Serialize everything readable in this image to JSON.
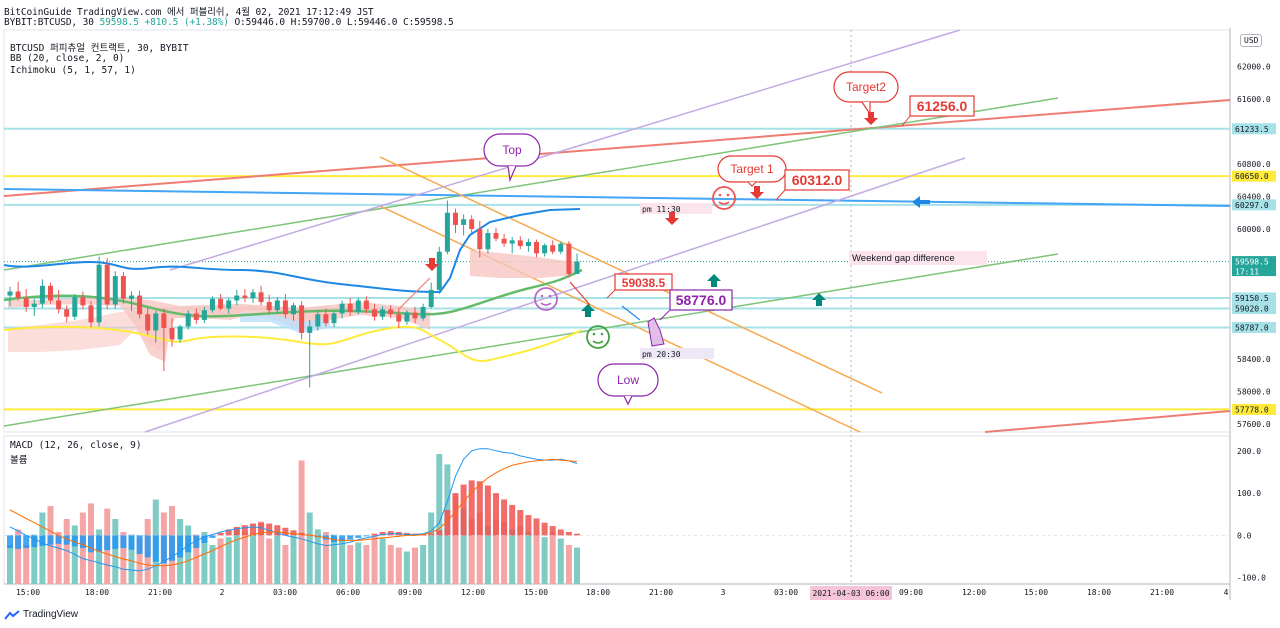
{
  "header": {
    "line1": "BitCoinGuide TradingView.com 에서 퍼블리쉬, 4월 02, 2021 17:12:49 JST",
    "symbol": "BYBIT:BTCUSD, 30",
    "price": "59598.5",
    "change": "+810.5 (+1.38%)",
    "ohlc": "O:59446.0 H:59700.0 L:59446.0 C:59598.5"
  },
  "legend": {
    "title": "BTCUSD 퍼피츄얼 컨트랙트, 30, BYBIT",
    "bb": "BB (20, close, 2, 0)",
    "ichimoku": "Ichimoku (5, 1, 57, 1)",
    "macd": "MACD (12, 26, close, 9)",
    "volume": "볼륨"
  },
  "currency": "USD",
  "brand": "TradingView",
  "chart_data": {
    "type": "candlestick",
    "x_labels": [
      "15:00",
      "18:00",
      "21:00",
      "2",
      "03:00",
      "06:00",
      "09:00",
      "12:00",
      "15:00",
      "18:00",
      "21:00",
      "3",
      "03:00",
      "06:00",
      "09:00",
      "12:00",
      "15:00",
      "18:00",
      "21:00",
      "4"
    ],
    "x_highlight": [
      "2021-04-03",
      "06:00"
    ],
    "y_ticks": [
      "62000.0",
      "61600.0",
      "60800.0",
      "60400.0",
      "60000.0",
      "58400.0",
      "58000.0",
      "57600.0"
    ],
    "y_range": [
      57500,
      62450
    ],
    "candles": [
      {
        "o": 59180,
        "h": 59290,
        "l": 59050,
        "c": 59230
      },
      {
        "o": 59230,
        "h": 59350,
        "l": 59120,
        "c": 59150
      },
      {
        "o": 59150,
        "h": 59260,
        "l": 58980,
        "c": 59040
      },
      {
        "o": 59040,
        "h": 59140,
        "l": 58930,
        "c": 59080
      },
      {
        "o": 59080,
        "h": 59380,
        "l": 59030,
        "c": 59300
      },
      {
        "o": 59300,
        "h": 59340,
        "l": 59080,
        "c": 59120
      },
      {
        "o": 59120,
        "h": 59250,
        "l": 58960,
        "c": 59010
      },
      {
        "o": 59010,
        "h": 59060,
        "l": 58850,
        "c": 58920
      },
      {
        "o": 58920,
        "h": 59200,
        "l": 58880,
        "c": 59160
      },
      {
        "o": 59160,
        "h": 59230,
        "l": 59010,
        "c": 59060
      },
      {
        "o": 59060,
        "h": 59110,
        "l": 58790,
        "c": 58850
      },
      {
        "o": 58850,
        "h": 59660,
        "l": 58800,
        "c": 59560
      },
      {
        "o": 59560,
        "h": 59640,
        "l": 59010,
        "c": 59070
      },
      {
        "o": 59070,
        "h": 59480,
        "l": 59020,
        "c": 59420
      },
      {
        "o": 59420,
        "h": 59470,
        "l": 59080,
        "c": 59140
      },
      {
        "o": 59140,
        "h": 59230,
        "l": 58990,
        "c": 59180
      },
      {
        "o": 59180,
        "h": 59240,
        "l": 58900,
        "c": 58950
      },
      {
        "o": 58950,
        "h": 59030,
        "l": 58700,
        "c": 58750
      },
      {
        "o": 58750,
        "h": 58990,
        "l": 58600,
        "c": 58960
      },
      {
        "o": 58960,
        "h": 59020,
        "l": 58250,
        "c": 58780
      },
      {
        "o": 58780,
        "h": 58900,
        "l": 58550,
        "c": 58640
      },
      {
        "o": 58640,
        "h": 58820,
        "l": 58600,
        "c": 58800
      },
      {
        "o": 58800,
        "h": 59000,
        "l": 58760,
        "c": 58960
      },
      {
        "o": 58960,
        "h": 59020,
        "l": 58830,
        "c": 58880
      },
      {
        "o": 58880,
        "h": 59040,
        "l": 58840,
        "c": 59000
      },
      {
        "o": 59000,
        "h": 59170,
        "l": 58970,
        "c": 59140
      },
      {
        "o": 59140,
        "h": 59200,
        "l": 59000,
        "c": 59020
      },
      {
        "o": 59020,
        "h": 59150,
        "l": 58960,
        "c": 59120
      },
      {
        "o": 59120,
        "h": 59250,
        "l": 59060,
        "c": 59180
      },
      {
        "o": 59180,
        "h": 59260,
        "l": 59100,
        "c": 59150
      },
      {
        "o": 59150,
        "h": 59260,
        "l": 59090,
        "c": 59220
      },
      {
        "o": 59220,
        "h": 59300,
        "l": 59060,
        "c": 59100
      },
      {
        "o": 59100,
        "h": 59190,
        "l": 58950,
        "c": 59000
      },
      {
        "o": 59000,
        "h": 59160,
        "l": 58960,
        "c": 59120
      },
      {
        "o": 59120,
        "h": 59200,
        "l": 58900,
        "c": 58950
      },
      {
        "o": 58950,
        "h": 59090,
        "l": 58870,
        "c": 59060
      },
      {
        "o": 59060,
        "h": 59110,
        "l": 58640,
        "c": 58720
      },
      {
        "o": 58720,
        "h": 58880,
        "l": 58050,
        "c": 58800
      },
      {
        "o": 58800,
        "h": 59000,
        "l": 58750,
        "c": 58950
      },
      {
        "o": 58950,
        "h": 59020,
        "l": 58800,
        "c": 58840
      },
      {
        "o": 58840,
        "h": 58990,
        "l": 58790,
        "c": 58960
      },
      {
        "o": 58960,
        "h": 59120,
        "l": 58900,
        "c": 59080
      },
      {
        "o": 59080,
        "h": 59150,
        "l": 58930,
        "c": 58980
      },
      {
        "o": 58980,
        "h": 59150,
        "l": 58950,
        "c": 59120
      },
      {
        "o": 59120,
        "h": 59170,
        "l": 58960,
        "c": 59010
      },
      {
        "o": 59010,
        "h": 59080,
        "l": 58870,
        "c": 58920
      },
      {
        "o": 58920,
        "h": 59050,
        "l": 58880,
        "c": 59010
      },
      {
        "o": 59010,
        "h": 59060,
        "l": 58900,
        "c": 58950
      },
      {
        "o": 58950,
        "h": 59030,
        "l": 58780,
        "c": 58860
      },
      {
        "o": 58860,
        "h": 59000,
        "l": 58820,
        "c": 58970
      },
      {
        "o": 58970,
        "h": 59040,
        "l": 58840,
        "c": 58900
      },
      {
        "o": 58900,
        "h": 59080,
        "l": 58870,
        "c": 59040
      },
      {
        "o": 59040,
        "h": 59340,
        "l": 59020,
        "c": 59250
      },
      {
        "o": 59250,
        "h": 59780,
        "l": 59200,
        "c": 59720
      },
      {
        "o": 59720,
        "h": 60350,
        "l": 59690,
        "c": 60200
      },
      {
        "o": 60200,
        "h": 60250,
        "l": 59950,
        "c": 60050
      },
      {
        "o": 60050,
        "h": 60180,
        "l": 59920,
        "c": 60120
      },
      {
        "o": 60120,
        "h": 60170,
        "l": 59950,
        "c": 60000
      },
      {
        "o": 60000,
        "h": 60100,
        "l": 59650,
        "c": 59750
      },
      {
        "o": 59750,
        "h": 60000,
        "l": 59700,
        "c": 59950
      },
      {
        "o": 59950,
        "h": 60010,
        "l": 59850,
        "c": 59880
      },
      {
        "o": 59880,
        "h": 59940,
        "l": 59780,
        "c": 59820
      },
      {
        "o": 59820,
        "h": 59900,
        "l": 59700,
        "c": 59860
      },
      {
        "o": 59860,
        "h": 59910,
        "l": 59750,
        "c": 59790
      },
      {
        "o": 59790,
        "h": 59880,
        "l": 59720,
        "c": 59840
      },
      {
        "o": 59840,
        "h": 59870,
        "l": 59650,
        "c": 59700
      },
      {
        "o": 59700,
        "h": 59820,
        "l": 59660,
        "c": 59800
      },
      {
        "o": 59800,
        "h": 59860,
        "l": 59690,
        "c": 59720
      },
      {
        "o": 59720,
        "h": 59840,
        "l": 59690,
        "c": 59820
      },
      {
        "o": 59820,
        "h": 59850,
        "l": 59400,
        "c": 59446
      },
      {
        "o": 59446,
        "h": 59700,
        "l": 59446,
        "c": 59598.5
      }
    ],
    "levels": [
      {
        "value": 61233.5,
        "label": "61233.5",
        "color": "#a6e1e8"
      },
      {
        "value": 60650.0,
        "label": "60650.0",
        "color": "#ffeb3b"
      },
      {
        "value": 60297.0,
        "label": "60297.0",
        "color": "#a6e1e8"
      },
      {
        "value": 59598.5,
        "label": "59598.5",
        "sub": "17:11",
        "color": "#26a69a"
      },
      {
        "value": 59150.5,
        "label": "59150.5",
        "color": "#a6e1e8"
      },
      {
        "value": 59020.0,
        "label": "59020.0",
        "color": "#a6e1e8"
      },
      {
        "value": 58787.0,
        "label": "58787.0",
        "color": "#a6e1e8"
      },
      {
        "value": 57778.0,
        "label": "57778.0",
        "color": "#ffeb3b"
      }
    ],
    "macd": {
      "y_ticks": [
        "200.0",
        "100.0",
        "0.0",
        "-100.0"
      ],
      "y_range": [
        -115,
        235
      ],
      "histogram": [
        -30,
        -32,
        -30,
        -28,
        -25,
        -22,
        -20,
        -22,
        -26,
        -30,
        -40,
        -38,
        -35,
        -32,
        -30,
        -34,
        -44,
        -52,
        -62,
        -66,
        -60,
        -52,
        -40,
        -30,
        -18,
        -6,
        6,
        14,
        20,
        24,
        28,
        30,
        28,
        24,
        18,
        12,
        6,
        2,
        -4,
        -10,
        -16,
        -14,
        -10,
        -6,
        -2,
        4,
        8,
        10,
        8,
        6,
        4,
        2,
        4,
        12,
        60,
        100,
        120,
        130,
        128,
        118,
        100,
        85,
        72,
        60,
        48,
        40,
        30,
        22,
        14,
        8,
        4
      ],
      "macd_line": [
        20,
        10,
        0,
        -8,
        -18,
        -25,
        -30,
        -36,
        -45,
        -55,
        -60,
        -65,
        -70,
        -74,
        -80,
        -82,
        -84,
        -80,
        -72,
        -62,
        -50,
        -38,
        -24,
        -12,
        -4,
        2,
        8,
        12,
        16,
        18,
        20,
        18,
        12,
        6,
        0,
        -4,
        -8,
        -14,
        -20,
        -24,
        -22,
        -20,
        -16,
        -10,
        -6,
        -2,
        2,
        4,
        4,
        2,
        2,
        4,
        10,
        30,
        80,
        140,
        180,
        200,
        205,
        205,
        200,
        196,
        194,
        188,
        184,
        180,
        178,
        178,
        180,
        176,
        170
      ],
      "signal_line": [
        60,
        50,
        40,
        30,
        20,
        10,
        0,
        -8,
        -16,
        -22,
        -30,
        -38,
        -44,
        -50,
        -56,
        -60,
        -66,
        -70,
        -72,
        -72,
        -70,
        -66,
        -60,
        -52,
        -44,
        -36,
        -26,
        -18,
        -10,
        -4,
        2,
        6,
        8,
        8,
        6,
        4,
        2,
        0,
        -2,
        -6,
        -10,
        -12,
        -12,
        -12,
        -10,
        -8,
        -6,
        -4,
        -2,
        0,
        0,
        2,
        6,
        16,
        34,
        56,
        80,
        102,
        120,
        136,
        148,
        158,
        166,
        170,
        174,
        176,
        178,
        180,
        178,
        176,
        175
      ],
      "volume": [
        0.3,
        0.42,
        0.3,
        0.38,
        0.55,
        0.6,
        0.4,
        0.5,
        0.45,
        0.55,
        0.62,
        0.42,
        0.58,
        0.5,
        0.4,
        0.38,
        0.35,
        0.5,
        0.65,
        0.55,
        0.6,
        0.5,
        0.45,
        0.38,
        0.4,
        0.3,
        0.35,
        0.36,
        0.42,
        0.4,
        0.38,
        0.48,
        0.35,
        0.4,
        0.3,
        0.38,
        0.95,
        0.55,
        0.42,
        0.4,
        0.38,
        0.35,
        0.3,
        0.32,
        0.3,
        0.38,
        0.35,
        0.3,
        0.28,
        0.25,
        0.28,
        0.3,
        0.55,
        1.0,
        0.92,
        0.68,
        0.58,
        0.5,
        0.55,
        0.45,
        0.5,
        0.48,
        0.42,
        0.45,
        0.4,
        0.38,
        0.36,
        0.4,
        0.35,
        0.3,
        0.28
      ]
    },
    "annotations": {
      "top": "Top",
      "low": "Low",
      "target1": "Target 1",
      "target2": "Target2",
      "price_61256": "61256.0",
      "price_60312": "60312.0",
      "price_59038": "59038.5",
      "price_58776": "58776.0",
      "pm1130": "pm 11:30",
      "pm2030": "pm 20:30",
      "weekend_gap": "Weekend gap difference"
    }
  }
}
